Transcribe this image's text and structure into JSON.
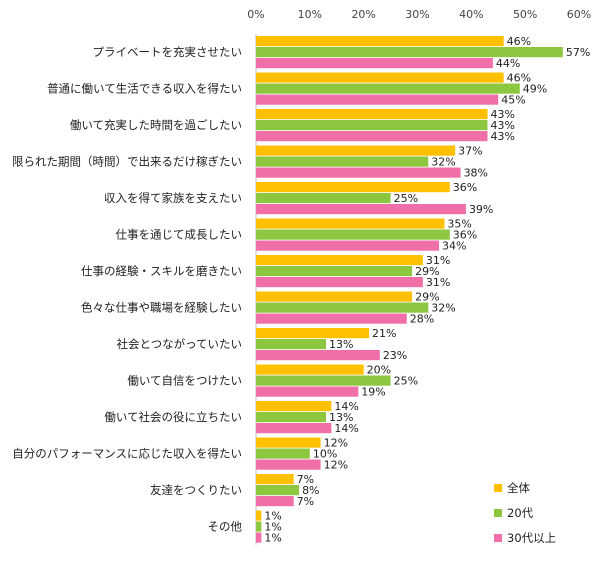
{
  "chart_data": {
    "type": "bar",
    "orientation": "horizontal",
    "xlim": [
      0,
      60
    ],
    "x_ticks": [
      "0%",
      "10%",
      "20%",
      "30%",
      "40%",
      "50%",
      "60%"
    ],
    "grid": false,
    "legend_position": "bottom-right",
    "categories": [
      "プライベートを充実させたい",
      "普通に働いて生活できる収入を得たい",
      "働いて充実した時間を過ごしたい",
      "限られた期間（時間）で出来るだけ稼ぎたい",
      "収入を得て家族を支えたい",
      "仕事を通じて成長したい",
      "仕事の経験・スキルを磨きたい",
      "色々な仕事や職場を経験したい",
      "社会とつながっていたい",
      "働いて自信をつけたい",
      "働いて社会の役に立ちたい",
      "自分のパフォーマンスに応じた収入を得たい",
      "友達をつくりたい",
      "その他"
    ],
    "series": [
      {
        "name": "全体",
        "color": "#FFC000",
        "values": [
          46,
          46,
          43,
          37,
          36,
          35,
          31,
          29,
          21,
          20,
          14,
          12,
          7,
          1
        ]
      },
      {
        "name": "20代",
        "color": "#8DC63F",
        "values": [
          57,
          49,
          43,
          32,
          25,
          36,
          29,
          32,
          13,
          25,
          13,
          10,
          8,
          1
        ]
      },
      {
        "name": "30代以上",
        "color": "#F06FA8",
        "values": [
          44,
          45,
          43,
          38,
          39,
          34,
          31,
          28,
          23,
          19,
          14,
          12,
          7,
          1
        ]
      }
    ],
    "value_suffix": "%"
  }
}
